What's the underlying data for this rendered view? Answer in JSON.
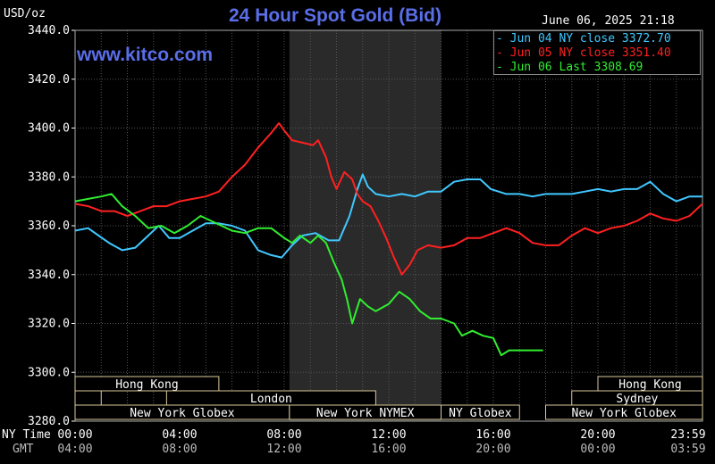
{
  "header": {
    "title": "24 Hour Spot Gold (Bid)",
    "unit": "USD/oz",
    "datetime": "June 06, 2025 21:18",
    "site": "www.kitco.com"
  },
  "legend": {
    "items": [
      {
        "label": "- Jun 04 NY close 3372.70",
        "color": "#40c8ff"
      },
      {
        "label": "- Jun 05 NY close 3351.40",
        "color": "#ff2020"
      },
      {
        "label": "- Jun 06 Last 3308.69",
        "color": "#30ee30"
      }
    ]
  },
  "axis": {
    "row1_label": "NY Time",
    "row2_label": "GMT",
    "row1_ticks": [
      "00:00",
      "04:00",
      "08:00",
      "12:00",
      "16:00",
      "20:00",
      "23:59"
    ],
    "row2_ticks": [
      "04:00",
      "08:00",
      "12:00",
      "16:00",
      "20:00",
      "00:00",
      "03:59"
    ]
  },
  "markets": [
    {
      "name": "Hong Kong",
      "row": 0,
      "start": 0.0,
      "end": 5.5,
      "show_label": true
    },
    {
      "name": "Hong Kong",
      "row": 0,
      "start": 20.0,
      "end": 24.0,
      "show_label": true
    },
    {
      "name": "",
      "row": 1,
      "start": 0.0,
      "end": 1.0,
      "show_label": false
    },
    {
      "name": "London",
      "row": 1,
      "start": 3.5,
      "end": 11.5,
      "show_label": true
    },
    {
      "name": "Sydney",
      "row": 1,
      "start": 19.0,
      "end": 24.0,
      "show_label": true
    },
    {
      "name": "New York Globex",
      "row": 2,
      "start": 0.0,
      "end": 8.2,
      "show_label": true
    },
    {
      "name": "New York NYMEX",
      "row": 2,
      "start": 8.2,
      "end": 14.0,
      "show_label": true
    },
    {
      "name": "NY Globex",
      "row": 2,
      "start": 14.0,
      "end": 17.0,
      "show_label": true
    },
    {
      "name": "New York Globex",
      "row": 2,
      "start": 18.0,
      "end": 24.0,
      "show_label": true
    }
  ],
  "chart_data": {
    "type": "line",
    "ylim": [
      3280,
      3440
    ],
    "yticks": [
      3280,
      3300,
      3320,
      3340,
      3360,
      3380,
      3400,
      3420,
      3440
    ],
    "xlim": [
      0,
      24
    ],
    "grid": true,
    "nymex_session": [
      8.2,
      14.0
    ],
    "series": [
      {
        "name": "Jun 04 NY close 3372.70",
        "color": "#40c8ff",
        "points": [
          [
            0,
            3358
          ],
          [
            0.5,
            3359
          ],
          [
            0.9,
            3356
          ],
          [
            1.3,
            3353
          ],
          [
            1.8,
            3350
          ],
          [
            2.3,
            3351
          ],
          [
            2.8,
            3356
          ],
          [
            3.2,
            3360
          ],
          [
            3.6,
            3355
          ],
          [
            4.0,
            3355
          ],
          [
            4.5,
            3358
          ],
          [
            5.0,
            3361
          ],
          [
            5.5,
            3361
          ],
          [
            6.0,
            3360
          ],
          [
            6.5,
            3358
          ],
          [
            7.0,
            3350
          ],
          [
            7.5,
            3348
          ],
          [
            7.9,
            3347
          ],
          [
            8.3,
            3352
          ],
          [
            8.7,
            3356
          ],
          [
            9.2,
            3357
          ],
          [
            9.7,
            3354
          ],
          [
            10.1,
            3354
          ],
          [
            10.5,
            3364
          ],
          [
            10.8,
            3375
          ],
          [
            11.0,
            3381
          ],
          [
            11.2,
            3376
          ],
          [
            11.5,
            3373
          ],
          [
            12.0,
            3372
          ],
          [
            12.5,
            3373
          ],
          [
            13.0,
            3372
          ],
          [
            13.5,
            3374
          ],
          [
            14.0,
            3374
          ],
          [
            14.5,
            3378
          ],
          [
            15.0,
            3379
          ],
          [
            15.5,
            3379
          ],
          [
            15.9,
            3375
          ],
          [
            16.5,
            3373
          ],
          [
            17.0,
            3373
          ],
          [
            17.5,
            3372
          ],
          [
            18.0,
            3373
          ],
          [
            18.5,
            3373
          ],
          [
            19.0,
            3373
          ],
          [
            19.5,
            3374
          ],
          [
            20.0,
            3375
          ],
          [
            20.5,
            3374
          ],
          [
            21.0,
            3375
          ],
          [
            21.5,
            3375
          ],
          [
            22.0,
            3378
          ],
          [
            22.5,
            3373
          ],
          [
            23.0,
            3370
          ],
          [
            23.5,
            3372
          ],
          [
            24.0,
            3372
          ]
        ]
      },
      {
        "name": "Jun 05 NY close 3351.40",
        "color": "#ff2020",
        "points": [
          [
            0,
            3369
          ],
          [
            0.5,
            3368
          ],
          [
            1.0,
            3366
          ],
          [
            1.5,
            3366
          ],
          [
            2.0,
            3364
          ],
          [
            2.5,
            3366
          ],
          [
            3.0,
            3368
          ],
          [
            3.5,
            3368
          ],
          [
            4.0,
            3370
          ],
          [
            4.5,
            3371
          ],
          [
            5.0,
            3372
          ],
          [
            5.5,
            3374
          ],
          [
            6.0,
            3380
          ],
          [
            6.5,
            3385
          ],
          [
            7.0,
            3392
          ],
          [
            7.5,
            3398
          ],
          [
            7.8,
            3402
          ],
          [
            8.0,
            3399
          ],
          [
            8.3,
            3395
          ],
          [
            8.7,
            3394
          ],
          [
            9.1,
            3393
          ],
          [
            9.3,
            3395
          ],
          [
            9.6,
            3388
          ],
          [
            9.8,
            3380
          ],
          [
            10.0,
            3375
          ],
          [
            10.3,
            3382
          ],
          [
            10.6,
            3379
          ],
          [
            10.8,
            3373
          ],
          [
            11.0,
            3370
          ],
          [
            11.3,
            3368
          ],
          [
            11.6,
            3362
          ],
          [
            11.9,
            3355
          ],
          [
            12.2,
            3347
          ],
          [
            12.5,
            3340
          ],
          [
            12.8,
            3344
          ],
          [
            13.1,
            3350
          ],
          [
            13.5,
            3352
          ],
          [
            14.0,
            3351
          ],
          [
            14.5,
            3352
          ],
          [
            15.0,
            3355
          ],
          [
            15.5,
            3355
          ],
          [
            16.0,
            3357
          ],
          [
            16.5,
            3359
          ],
          [
            17.0,
            3357
          ],
          [
            17.5,
            3353
          ],
          [
            18.0,
            3352
          ],
          [
            18.5,
            3352
          ],
          [
            19.0,
            3356
          ],
          [
            19.5,
            3359
          ],
          [
            20.0,
            3357
          ],
          [
            20.5,
            3359
          ],
          [
            21.0,
            3360
          ],
          [
            21.5,
            3362
          ],
          [
            22.0,
            3365
          ],
          [
            22.5,
            3363
          ],
          [
            23.0,
            3362
          ],
          [
            23.5,
            3364
          ],
          [
            24.0,
            3369
          ]
        ]
      },
      {
        "name": "Jun 06 Last 3308.69",
        "color": "#30ee30",
        "points": [
          [
            0,
            3370
          ],
          [
            0.5,
            3371
          ],
          [
            1.0,
            3372
          ],
          [
            1.4,
            3373
          ],
          [
            1.8,
            3368
          ],
          [
            2.3,
            3364
          ],
          [
            2.8,
            3359
          ],
          [
            3.3,
            3360
          ],
          [
            3.8,
            3357
          ],
          [
            4.3,
            3360
          ],
          [
            4.8,
            3364
          ],
          [
            5.2,
            3362
          ],
          [
            5.6,
            3360
          ],
          [
            6.0,
            3358
          ],
          [
            6.5,
            3357
          ],
          [
            7.0,
            3359
          ],
          [
            7.5,
            3359
          ],
          [
            8.0,
            3355
          ],
          [
            8.3,
            3353
          ],
          [
            8.6,
            3356
          ],
          [
            9.0,
            3353
          ],
          [
            9.3,
            3356
          ],
          [
            9.6,
            3353
          ],
          [
            9.9,
            3345
          ],
          [
            10.2,
            3338
          ],
          [
            10.4,
            3330
          ],
          [
            10.6,
            3320
          ],
          [
            10.9,
            3330
          ],
          [
            11.2,
            3327
          ],
          [
            11.5,
            3325
          ],
          [
            12.0,
            3328
          ],
          [
            12.4,
            3333
          ],
          [
            12.8,
            3330
          ],
          [
            13.2,
            3325
          ],
          [
            13.6,
            3322
          ],
          [
            14.0,
            3322
          ],
          [
            14.5,
            3320
          ],
          [
            14.8,
            3315
          ],
          [
            15.2,
            3317
          ],
          [
            15.6,
            3315
          ],
          [
            16.0,
            3314
          ],
          [
            16.3,
            3307
          ],
          [
            16.6,
            3309
          ],
          [
            17.0,
            3309
          ],
          [
            17.5,
            3309
          ],
          [
            17.9,
            3309
          ]
        ]
      }
    ]
  }
}
